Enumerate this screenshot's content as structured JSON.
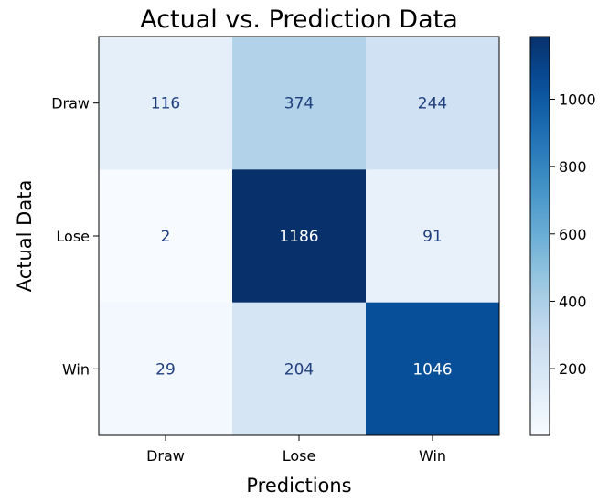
{
  "chart_data": {
    "type": "heatmap",
    "title": "Actual vs. Prediction Data",
    "xlabel": "Predictions",
    "ylabel": "Actual Data",
    "x_categories": [
      "Draw",
      "Lose",
      "Win"
    ],
    "y_categories": [
      "Draw",
      "Lose",
      "Win"
    ],
    "values": [
      [
        116,
        374,
        244
      ],
      [
        2,
        1186,
        91
      ],
      [
        29,
        204,
        1046
      ]
    ],
    "colormap": "Blues",
    "color_range": [
      2,
      1186
    ],
    "colorbar_ticks": [
      200,
      400,
      600,
      800,
      1000
    ],
    "text_color_light": "#ffffff",
    "text_color_dark": "#1f3f7f",
    "grid": false
  }
}
